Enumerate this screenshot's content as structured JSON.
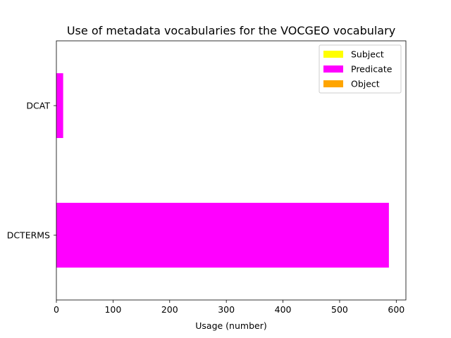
{
  "chart_data": {
    "type": "bar",
    "orientation": "horizontal",
    "title": "Use of metadata vocabularies for the VOCGEO vocabulary",
    "xlabel": "Usage (number)",
    "ylabel": "",
    "categories": [
      "DCAT",
      "DCTERMS"
    ],
    "series": [
      {
        "name": "Subject",
        "color": "#ffff00",
        "values": [
          0,
          0
        ]
      },
      {
        "name": "Predicate",
        "color": "#ff00ff",
        "values": [
          12,
          587
        ]
      },
      {
        "name": "Object",
        "color": "#ffa500",
        "values": [
          0,
          0
        ]
      }
    ],
    "xlim": [
      0,
      617
    ],
    "xticks": [
      0,
      100,
      200,
      300,
      400,
      500,
      600
    ],
    "grid": false,
    "legend_position": "top-right"
  }
}
